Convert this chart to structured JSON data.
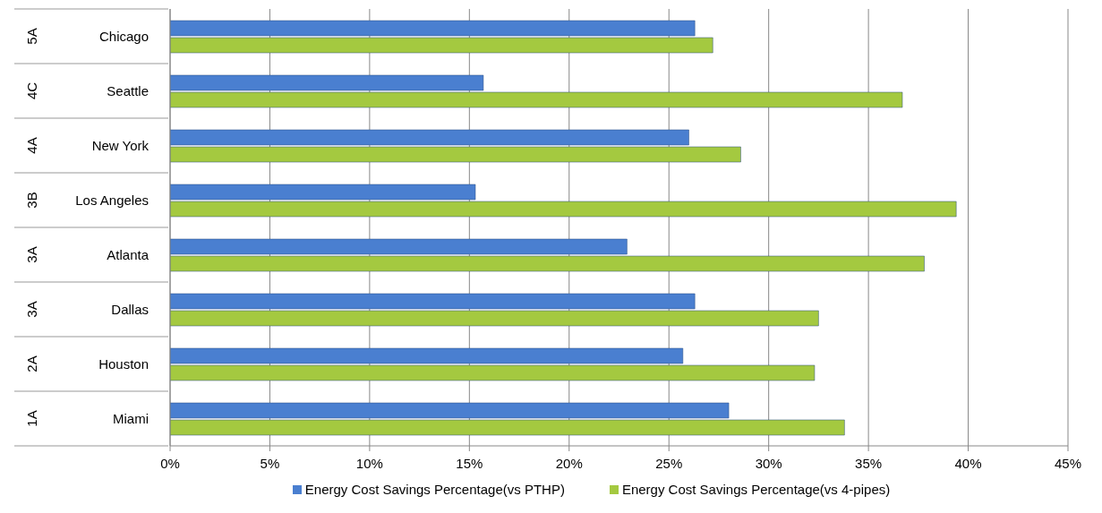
{
  "chart_data": {
    "type": "bar",
    "orientation": "horizontal",
    "categories": [
      "Chicago",
      "Seattle",
      "New York",
      "Los Angeles",
      "Atlanta",
      "Dallas",
      "Houston",
      "Miami"
    ],
    "series": [
      {
        "name": "Energy Cost Savings Percentage(vs PTHP)",
        "color": "#4a7fd0",
        "values": [
          26.3,
          15.7,
          26.0,
          15.3,
          22.9,
          26.3,
          25.7,
          28.0
        ]
      },
      {
        "name": "Energy Cost Savings Percentage(vs 4-pipes)",
        "color": "#a4c940",
        "values": [
          27.2,
          36.7,
          28.6,
          39.4,
          37.8,
          32.5,
          32.3,
          33.8
        ]
      }
    ],
    "xlim": [
      0,
      45
    ],
    "xticks": [
      {
        "value": 0,
        "label": "0%"
      },
      {
        "value": 5,
        "label": "5%"
      },
      {
        "value": 10,
        "label": "10%"
      },
      {
        "value": 15,
        "label": "15%"
      },
      {
        "value": 20,
        "label": "20%"
      },
      {
        "value": 25,
        "label": "25%"
      },
      {
        "value": 30,
        "label": "30%"
      },
      {
        "value": 35,
        "label": "35%"
      },
      {
        "value": 40,
        "label": "40%"
      },
      {
        "value": 45,
        "label": "45%"
      }
    ],
    "annotations": [
      "5A",
      "4C",
      "4A",
      "3B",
      "3A",
      "3A",
      "2A",
      "1A"
    ],
    "grid": "x",
    "legend": "bottom"
  }
}
